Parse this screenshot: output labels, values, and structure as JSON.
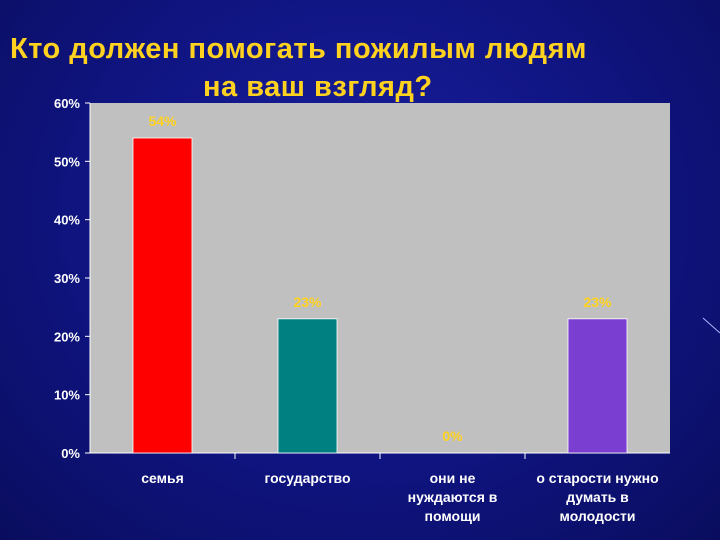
{
  "title": {
    "line1": "Кто должен помогать пожилым людям",
    "line2": "на ваш взгляд?"
  },
  "colors": {
    "background": "#10158a",
    "title": "#ffd21f",
    "plot_area": "#c0c0c0",
    "axis_text": "#ffffff",
    "data_label": "#ffd21f"
  },
  "chart_data": {
    "type": "bar",
    "categories": [
      [
        "семья"
      ],
      [
        "государство"
      ],
      [
        "они не",
        "нуждаются в",
        "помощи"
      ],
      [
        "о старости нужно",
        "думать в",
        "молодости"
      ]
    ],
    "values": [
      54,
      23,
      0,
      23
    ],
    "data_labels": [
      "54%",
      "23%",
      "0%",
      "23%"
    ],
    "bar_colors": [
      "#ff0000",
      "#008080",
      "#3a3aa0",
      "#7a3fd0"
    ],
    "y_ticks": [
      "0%",
      "10%",
      "20%",
      "30%",
      "40%",
      "50%",
      "60%"
    ],
    "ylim": [
      0,
      60
    ],
    "grid": false,
    "legend": "none"
  }
}
